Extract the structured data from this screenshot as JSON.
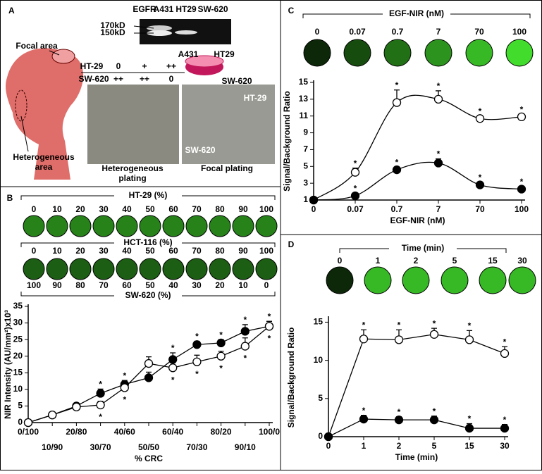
{
  "panel_a": {
    "label": "A",
    "gel": {
      "title": "EGFR",
      "lanes": [
        "A431",
        "HT29",
        "SW-620"
      ],
      "markers": [
        "170kD",
        "150kD"
      ]
    },
    "diagram": {
      "focal": "Focal area",
      "heterogeneous": [
        "Heterogeneous",
        "area"
      ]
    },
    "plating_table": {
      "rows": [
        [
          "HT-29",
          "0",
          "+",
          "++"
        ],
        [
          "SW-620",
          "++",
          "++",
          "0"
        ]
      ]
    },
    "dish": {
      "labels": [
        "A431",
        "HT29",
        "SW-620"
      ]
    },
    "micrographs": [
      {
        "caption": [
          "Heterogeneous",
          "plating"
        ]
      },
      {
        "labels": [
          "HT-29",
          "SW-620"
        ],
        "caption": [
          "Focal plating"
        ]
      }
    ]
  },
  "panel_b_wells": {
    "rows": [
      {
        "title": "HT-29 (%)",
        "labels": [
          "0",
          "10",
          "20",
          "30",
          "40",
          "50",
          "60",
          "70",
          "80",
          "90",
          "100"
        ]
      },
      {
        "title": "HCT-116 (%)",
        "labels": [
          "0",
          "10",
          "20",
          "30",
          "40",
          "50",
          "60",
          "70",
          "80",
          "90",
          "100"
        ]
      }
    ],
    "bottom": {
      "title": "SW-620 (%)",
      "labels": [
        "100",
        "90",
        "80",
        "70",
        "60",
        "50",
        "40",
        "30",
        "20",
        "10",
        "0"
      ]
    }
  },
  "panel_c_wells": {
    "title": "EGF-NIR (nM)",
    "labels": [
      "0",
      "0.07",
      "0.7",
      "7",
      "70",
      "100"
    ]
  },
  "panel_d_wells": {
    "title": "Time (min)",
    "labels": [
      "0",
      "1",
      "2",
      "5",
      "15",
      "30"
    ]
  },
  "chart_data": [
    {
      "type": "line",
      "panel": "B",
      "x_label": "% CRC",
      "y_label": "NIR Intensity (AU/mm²)x10³",
      "categories": [
        "0/100",
        "10/90",
        "20/80",
        "30/70",
        "40/60",
        "50/50",
        "60/40",
        "70/30",
        "80/20",
        "90/10",
        "100/0"
      ],
      "ylim": [
        0,
        35
      ],
      "yticks": [
        0,
        5,
        10,
        15,
        20,
        25,
        30,
        35
      ],
      "series": [
        {
          "color": "#000000",
          "values": [
            0,
            2.3,
            5,
            8.8,
            11.5,
            13.5,
            19,
            23.5,
            24,
            27.5,
            29
          ],
          "errors": [
            0,
            0.8,
            0.6,
            1.3,
            1.2,
            1.7,
            2,
            1,
            1,
            2,
            1.5
          ],
          "significance": {
            "label": "*",
            "position": "above",
            "points": [
              3,
              4,
              5,
              6,
              7,
              8,
              9,
              10
            ]
          }
        },
        {
          "color": "#ffffff",
          "values": [
            0,
            2.3,
            4.7,
            5.3,
            10.5,
            17.8,
            16.5,
            18.3,
            20,
            23,
            29
          ],
          "errors": [
            0,
            0.6,
            0.6,
            1.1,
            1.2,
            2,
            1.5,
            2,
            1.5,
            2.5,
            1.5
          ],
          "significance": {
            "label": "*",
            "position": "below",
            "points": [
              3,
              4,
              5,
              6,
              7,
              8,
              9,
              10
            ]
          }
        }
      ]
    },
    {
      "type": "line",
      "panel": "C",
      "smooth": true,
      "x_label": "EGF-NIR (nM)",
      "y_label": "Signal/Background Ratio",
      "categories": [
        "0",
        "0.07",
        "0.7",
        "7",
        "70",
        "100"
      ],
      "ylim": [
        1,
        15
      ],
      "yticks": [
        1,
        3,
        5,
        7,
        9,
        11,
        13,
        15
      ],
      "series": [
        {
          "color": "#ffffff",
          "values": [
            1,
            4.3,
            12.6,
            13,
            10.7,
            10.9
          ],
          "errors": [
            0,
            0.5,
            1.5,
            1,
            0.3,
            0.3
          ],
          "significance": {
            "label": "*",
            "position": "above",
            "points": [
              1,
              2,
              3,
              4,
              5
            ]
          }
        },
        {
          "color": "#000000",
          "values": [
            1,
            1.5,
            4.6,
            5.4,
            2.8,
            2.3
          ],
          "errors": [
            0,
            0.3,
            0.3,
            0.5,
            0.3,
            0.3
          ],
          "significance": {
            "label": "*",
            "position": "above",
            "points": [
              1,
              2,
              3,
              4,
              5
            ]
          }
        }
      ]
    },
    {
      "type": "line",
      "panel": "D",
      "x_label": "Time (min)",
      "y_label": "Signal/Background Ratio",
      "categories": [
        "0",
        "1",
        "2",
        "5",
        "15",
        "30"
      ],
      "ylim": [
        0,
        15.5
      ],
      "yticks": [
        0,
        5,
        10,
        15
      ],
      "series": [
        {
          "color": "#ffffff",
          "values": [
            0,
            12.8,
            12.7,
            13.4,
            12.7,
            10.9
          ],
          "errors": [
            0,
            1.2,
            1.3,
            0.8,
            1.2,
            0.9
          ],
          "significance": {
            "label": "*",
            "position": "above",
            "points": [
              1,
              2,
              3,
              4,
              5
            ]
          }
        },
        {
          "color": "#000000",
          "values": [
            0,
            2.3,
            2.2,
            2.2,
            1.1,
            1.1
          ],
          "errors": [
            0,
            0.5,
            0.4,
            0.5,
            0.6,
            0.5
          ],
          "significance": {
            "label": "*",
            "position": "above",
            "points": [
              1,
              2,
              3,
              4,
              5
            ]
          }
        }
      ]
    }
  ]
}
